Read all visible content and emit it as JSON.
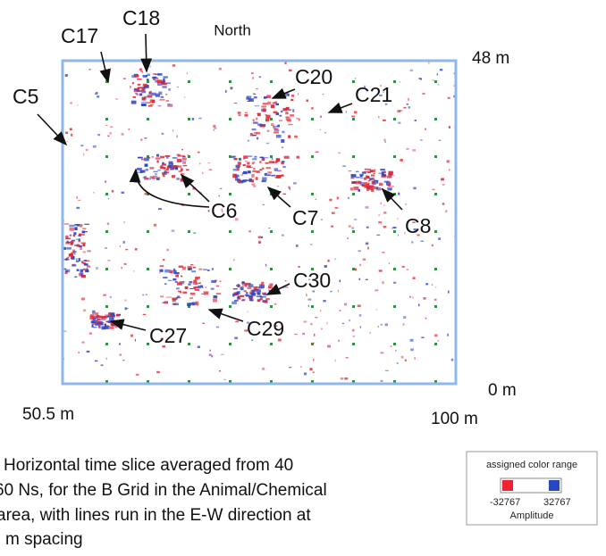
{
  "figure": {
    "orientation": "North",
    "scale": {
      "top_right": "48 m",
      "bottom_right": "0 m",
      "bottom_left": "50.5 m",
      "bottom_right_x": "100 m"
    },
    "anomalies": [
      "C17",
      "C18",
      "C5",
      "C20",
      "C21",
      "C6",
      "C7",
      "C8",
      "C30",
      "C29",
      "C27"
    ],
    "legend": {
      "title": "assigned color range",
      "min": "-32767",
      "max": "32767",
      "label": "Amplitude"
    },
    "caption": [
      "Horizontal time slice averaged from 40",
      "60 Ns, for the B Grid in the Animal/Chemical",
      "area, with lines run in the E-W direction at",
      "m spacing"
    ]
  }
}
